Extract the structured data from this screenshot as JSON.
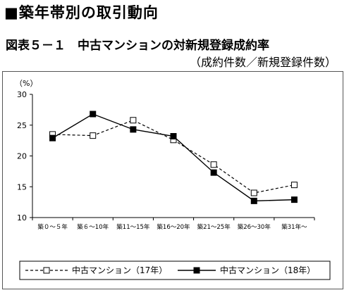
{
  "heading": "■築年帯別の取引動向",
  "figure": {
    "title": "図表５－１　中古マンションの対新規登録成約率",
    "subtitle": "（成約件数／新規登録件数）"
  },
  "chart_data": {
    "type": "line",
    "title": "図表５－１　中古マンションの対新規登録成約率",
    "subtitle": "（成約件数／新規登録件数）",
    "ylabel": "（%）",
    "xlabel": "",
    "ylim": [
      10,
      30
    ],
    "yticks": [
      10,
      15,
      20,
      25,
      30
    ],
    "grid": false,
    "legend_position": "bottom",
    "categories": [
      "築０～５年",
      "築６～10年",
      "築11～15年",
      "築16～20年",
      "築21～25年",
      "築26～30年",
      "築31年～"
    ],
    "series": [
      {
        "name": "中古マンション（17年）",
        "values": [
          23.5,
          23.3,
          25.8,
          22.6,
          18.6,
          14.0,
          15.3
        ],
        "color": "#000000",
        "line_style": "dashed",
        "marker": "open-square"
      },
      {
        "name": "中古マンション（18年）",
        "values": [
          22.9,
          26.8,
          24.3,
          23.2,
          17.3,
          12.7,
          12.9
        ],
        "color": "#000000",
        "line_style": "solid",
        "marker": "filled-square"
      }
    ]
  }
}
